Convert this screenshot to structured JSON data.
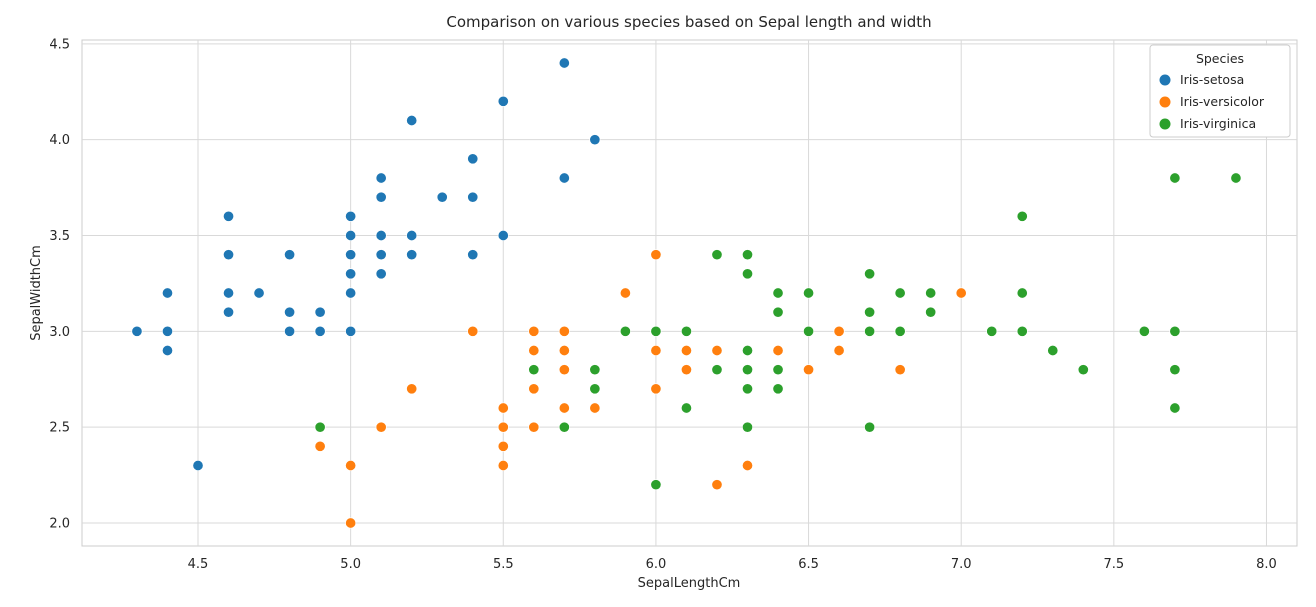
{
  "chart_data": {
    "type": "scatter",
    "title": "Comparison on various species based on Sepal length and width",
    "xlabel": "SepalLengthCm",
    "ylabel": "SepalWidthCm",
    "xlim": [
      4.12,
      8.1
    ],
    "ylim": [
      1.88,
      4.52
    ],
    "xticks": [
      "4.5",
      "5.0",
      "5.5",
      "6.0",
      "6.5",
      "7.0",
      "7.5",
      "8.0"
    ],
    "yticks": [
      "2.0",
      "2.5",
      "3.0",
      "3.5",
      "4.0",
      "4.5"
    ],
    "grid": true,
    "legend": {
      "title": "Species",
      "placement": "top-right"
    },
    "series": [
      {
        "name": "Iris-setosa",
        "color": "#1f77b4",
        "points": [
          [
            4.3,
            3.0
          ],
          [
            4.4,
            3.0
          ],
          [
            4.4,
            2.9
          ],
          [
            4.4,
            3.2
          ],
          [
            4.5,
            2.3
          ],
          [
            4.6,
            3.6
          ],
          [
            4.6,
            3.4
          ],
          [
            4.6,
            3.2
          ],
          [
            4.6,
            3.1
          ],
          [
            4.7,
            3.2
          ],
          [
            4.8,
            3.4
          ],
          [
            4.8,
            3.1
          ],
          [
            4.8,
            3.0
          ],
          [
            4.9,
            3.1
          ],
          [
            4.9,
            3.0
          ],
          [
            5.0,
            3.6
          ],
          [
            5.0,
            3.5
          ],
          [
            5.0,
            3.4
          ],
          [
            5.0,
            3.3
          ],
          [
            5.0,
            3.2
          ],
          [
            5.0,
            3.0
          ],
          [
            5.1,
            3.8
          ],
          [
            5.1,
            3.7
          ],
          [
            5.1,
            3.5
          ],
          [
            5.1,
            3.4
          ],
          [
            5.1,
            3.3
          ],
          [
            5.2,
            4.1
          ],
          [
            5.2,
            3.5
          ],
          [
            5.2,
            3.4
          ],
          [
            5.3,
            3.7
          ],
          [
            5.4,
            3.9
          ],
          [
            5.4,
            3.7
          ],
          [
            5.4,
            3.4
          ],
          [
            5.5,
            4.2
          ],
          [
            5.5,
            3.5
          ],
          [
            5.7,
            4.4
          ],
          [
            5.7,
            3.8
          ],
          [
            5.8,
            4.0
          ]
        ]
      },
      {
        "name": "Iris-versicolor",
        "color": "#ff7f0e",
        "points": [
          [
            4.9,
            2.4
          ],
          [
            5.0,
            2.3
          ],
          [
            5.0,
            2.0
          ],
          [
            5.1,
            2.5
          ],
          [
            5.2,
            2.7
          ],
          [
            5.4,
            3.0
          ],
          [
            5.5,
            2.6
          ],
          [
            5.5,
            2.5
          ],
          [
            5.5,
            2.4
          ],
          [
            5.5,
            2.3
          ],
          [
            5.6,
            3.0
          ],
          [
            5.6,
            2.9
          ],
          [
            5.6,
            2.7
          ],
          [
            5.6,
            2.5
          ],
          [
            5.7,
            3.0
          ],
          [
            5.7,
            2.9
          ],
          [
            5.7,
            2.8
          ],
          [
            5.7,
            2.6
          ],
          [
            5.8,
            2.7
          ],
          [
            5.8,
            2.6
          ],
          [
            5.9,
            3.2
          ],
          [
            5.9,
            3.0
          ],
          [
            6.0,
            3.4
          ],
          [
            6.0,
            2.9
          ],
          [
            6.0,
            2.7
          ],
          [
            6.1,
            2.9
          ],
          [
            6.1,
            2.8
          ],
          [
            6.2,
            2.9
          ],
          [
            6.2,
            2.2
          ],
          [
            6.3,
            2.3
          ],
          [
            6.4,
            2.9
          ],
          [
            6.5,
            2.8
          ],
          [
            6.6,
            3.0
          ],
          [
            6.6,
            2.9
          ],
          [
            6.7,
            3.0
          ],
          [
            6.8,
            2.8
          ],
          [
            7.0,
            3.2
          ]
        ]
      },
      {
        "name": "Iris-virginica",
        "color": "#2ca02c",
        "points": [
          [
            4.9,
            2.5
          ],
          [
            5.6,
            2.8
          ],
          [
            5.7,
            2.5
          ],
          [
            5.8,
            2.8
          ],
          [
            5.8,
            2.7
          ],
          [
            5.9,
            3.0
          ],
          [
            6.0,
            3.0
          ],
          [
            6.0,
            2.2
          ],
          [
            6.1,
            3.0
          ],
          [
            6.1,
            2.6
          ],
          [
            6.2,
            3.4
          ],
          [
            6.2,
            2.8
          ],
          [
            6.3,
            3.4
          ],
          [
            6.3,
            3.3
          ],
          [
            6.3,
            2.9
          ],
          [
            6.3,
            2.8
          ],
          [
            6.3,
            2.7
          ],
          [
            6.3,
            2.5
          ],
          [
            6.4,
            3.2
          ],
          [
            6.4,
            3.1
          ],
          [
            6.4,
            2.8
          ],
          [
            6.4,
            2.7
          ],
          [
            6.5,
            3.2
          ],
          [
            6.5,
            3.0
          ],
          [
            6.7,
            3.3
          ],
          [
            6.7,
            3.1
          ],
          [
            6.7,
            3.0
          ],
          [
            6.7,
            2.5
          ],
          [
            6.8,
            3.2
          ],
          [
            6.8,
            3.0
          ],
          [
            6.9,
            3.2
          ],
          [
            6.9,
            3.1
          ],
          [
            7.1,
            3.0
          ],
          [
            7.2,
            3.6
          ],
          [
            7.2,
            3.2
          ],
          [
            7.2,
            3.0
          ],
          [
            7.3,
            2.9
          ],
          [
            7.4,
            2.8
          ],
          [
            7.6,
            3.0
          ],
          [
            7.7,
            3.8
          ],
          [
            7.7,
            3.0
          ],
          [
            7.7,
            2.8
          ],
          [
            7.7,
            2.6
          ],
          [
            7.9,
            3.8
          ]
        ]
      }
    ]
  }
}
